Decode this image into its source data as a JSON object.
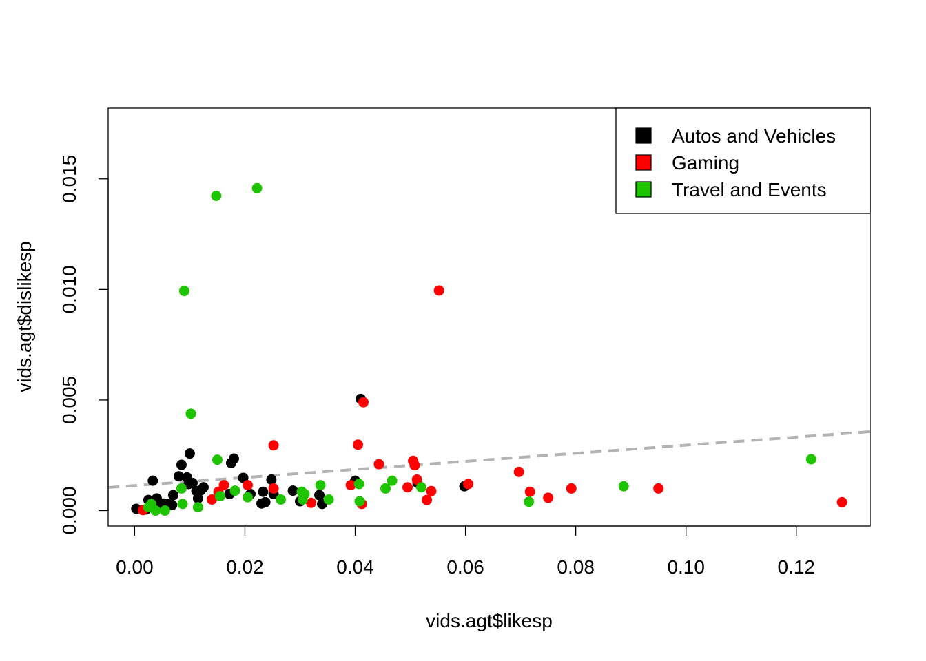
{
  "chart_data": {
    "type": "scatter",
    "title": "",
    "xlabel": "vids.agt$likesp",
    "ylabel": "vids.agt$dislikesp",
    "xlim": [
      -0.0048,
      0.1334
    ],
    "ylim": [
      -0.0007,
      0.0182
    ],
    "x_ticks": [
      "0.00",
      "0.02",
      "0.04",
      "0.06",
      "0.08",
      "0.10",
      "0.12"
    ],
    "x_tick_values": [
      0,
      0.02,
      0.04,
      0.06,
      0.08,
      0.1,
      0.12
    ],
    "y_ticks": [
      "0.000",
      "0.005",
      "0.010",
      "0.015"
    ],
    "y_tick_values": [
      0,
      0.005,
      0.01,
      0.015
    ],
    "grid": false,
    "legend_position": "top-right",
    "trend_line": {
      "style": "dashed",
      "color": "#b3b3b3",
      "intercept": 0.00113,
      "slope": 0.01827
    },
    "series": [
      {
        "name": "Autos and Vehicles",
        "color": "#000000",
        "x": [
          0.0003,
          0.0021,
          0.0025,
          0.0033,
          0.004,
          0.0045,
          0.0052,
          0.006,
          0.0068,
          0.007,
          0.008,
          0.0085,
          0.0095,
          0.0098,
          0.01,
          0.0105,
          0.0112,
          0.0115,
          0.012,
          0.0125,
          0.0172,
          0.0175,
          0.018,
          0.0197,
          0.021,
          0.023,
          0.0233,
          0.0237,
          0.0248,
          0.0252,
          0.0287,
          0.03,
          0.0335,
          0.034,
          0.04,
          0.041,
          0.0513,
          0.0598
        ],
        "y": [
          8e-05,
          5e-05,
          0.00048,
          0.00135,
          0.00055,
          0.00018,
          0.00032,
          0.0003,
          0.00025,
          0.0007,
          0.00155,
          0.00207,
          0.0015,
          0.0012,
          0.00258,
          0.00125,
          0.00088,
          0.00055,
          0.00092,
          0.00105,
          0.00075,
          0.00215,
          0.00235,
          0.00148,
          0.00075,
          0.00032,
          0.00085,
          0.00038,
          0.0014,
          0.00075,
          0.0009,
          0.00042,
          0.0007,
          0.0003,
          0.00135,
          0.00505,
          0.00125,
          0.0011
        ]
      },
      {
        "name": "Gaming",
        "color": "#ff0000",
        "x": [
          0.0015,
          0.014,
          0.0152,
          0.0162,
          0.0205,
          0.0252,
          0.0252,
          0.032,
          0.0392,
          0.0405,
          0.0412,
          0.0415,
          0.0443,
          0.0495,
          0.0505,
          0.0508,
          0.0512,
          0.053,
          0.0538,
          0.0552,
          0.0605,
          0.0697,
          0.0717,
          0.075,
          0.0792,
          0.095,
          0.1283
        ],
        "y": [
          2e-05,
          0.0005,
          0.00085,
          0.00115,
          0.00115,
          0.00295,
          0.001,
          0.00035,
          0.00115,
          0.00298,
          0.0003,
          0.0049,
          0.0021,
          0.00105,
          0.00225,
          0.00205,
          0.0014,
          0.00048,
          0.00088,
          0.00995,
          0.0012,
          0.00175,
          0.00085,
          0.00058,
          0.001,
          0.001,
          0.00038
        ]
      },
      {
        "name": "Travel and Events",
        "color": "#1fc400",
        "x": [
          0.0025,
          0.003,
          0.0038,
          0.0055,
          0.0085,
          0.0087,
          0.009,
          0.0102,
          0.0115,
          0.0148,
          0.015,
          0.0155,
          0.0182,
          0.0205,
          0.0222,
          0.0265,
          0.0303,
          0.0305,
          0.0308,
          0.0337,
          0.0352,
          0.0407,
          0.0408,
          0.0455,
          0.0467,
          0.052,
          0.0715,
          0.0887,
          0.1227
        ],
        "y": [
          0.00015,
          0.0003,
          0.0,
          0.0,
          0.001,
          0.0003,
          0.00993,
          0.00438,
          0.00015,
          0.01423,
          0.0023,
          0.00065,
          0.0009,
          0.0006,
          0.01458,
          0.0005,
          0.00085,
          0.0005,
          0.00075,
          0.00115,
          0.0005,
          0.0012,
          0.00042,
          0.001,
          0.00135,
          0.00105,
          0.0004,
          0.0011,
          0.00232
        ]
      }
    ]
  }
}
